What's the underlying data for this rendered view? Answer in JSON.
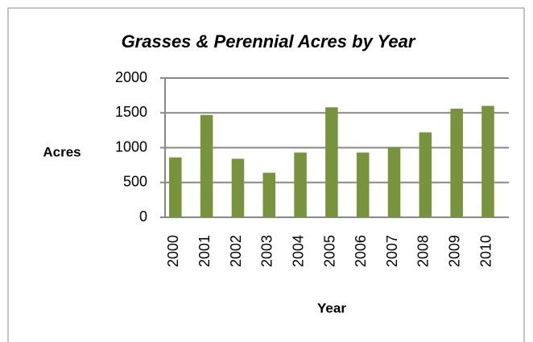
{
  "chart_data": {
    "type": "bar",
    "title": "Grasses & Perennial Acres by Year",
    "x_label": "Year",
    "y_label": "Acres",
    "categories": [
      "2000",
      "2001",
      "2002",
      "2003",
      "2004",
      "2005",
      "2006",
      "2007",
      "2008",
      "2009",
      "2010"
    ],
    "values": [
      860,
      1470,
      840,
      640,
      930,
      1580,
      930,
      1010,
      1220,
      1560,
      1600
    ],
    "color": "#77933c",
    "ylim": [
      0,
      2000
    ],
    "yticks": [
      0,
      500,
      1000,
      1500,
      2000
    ],
    "grid": true
  }
}
